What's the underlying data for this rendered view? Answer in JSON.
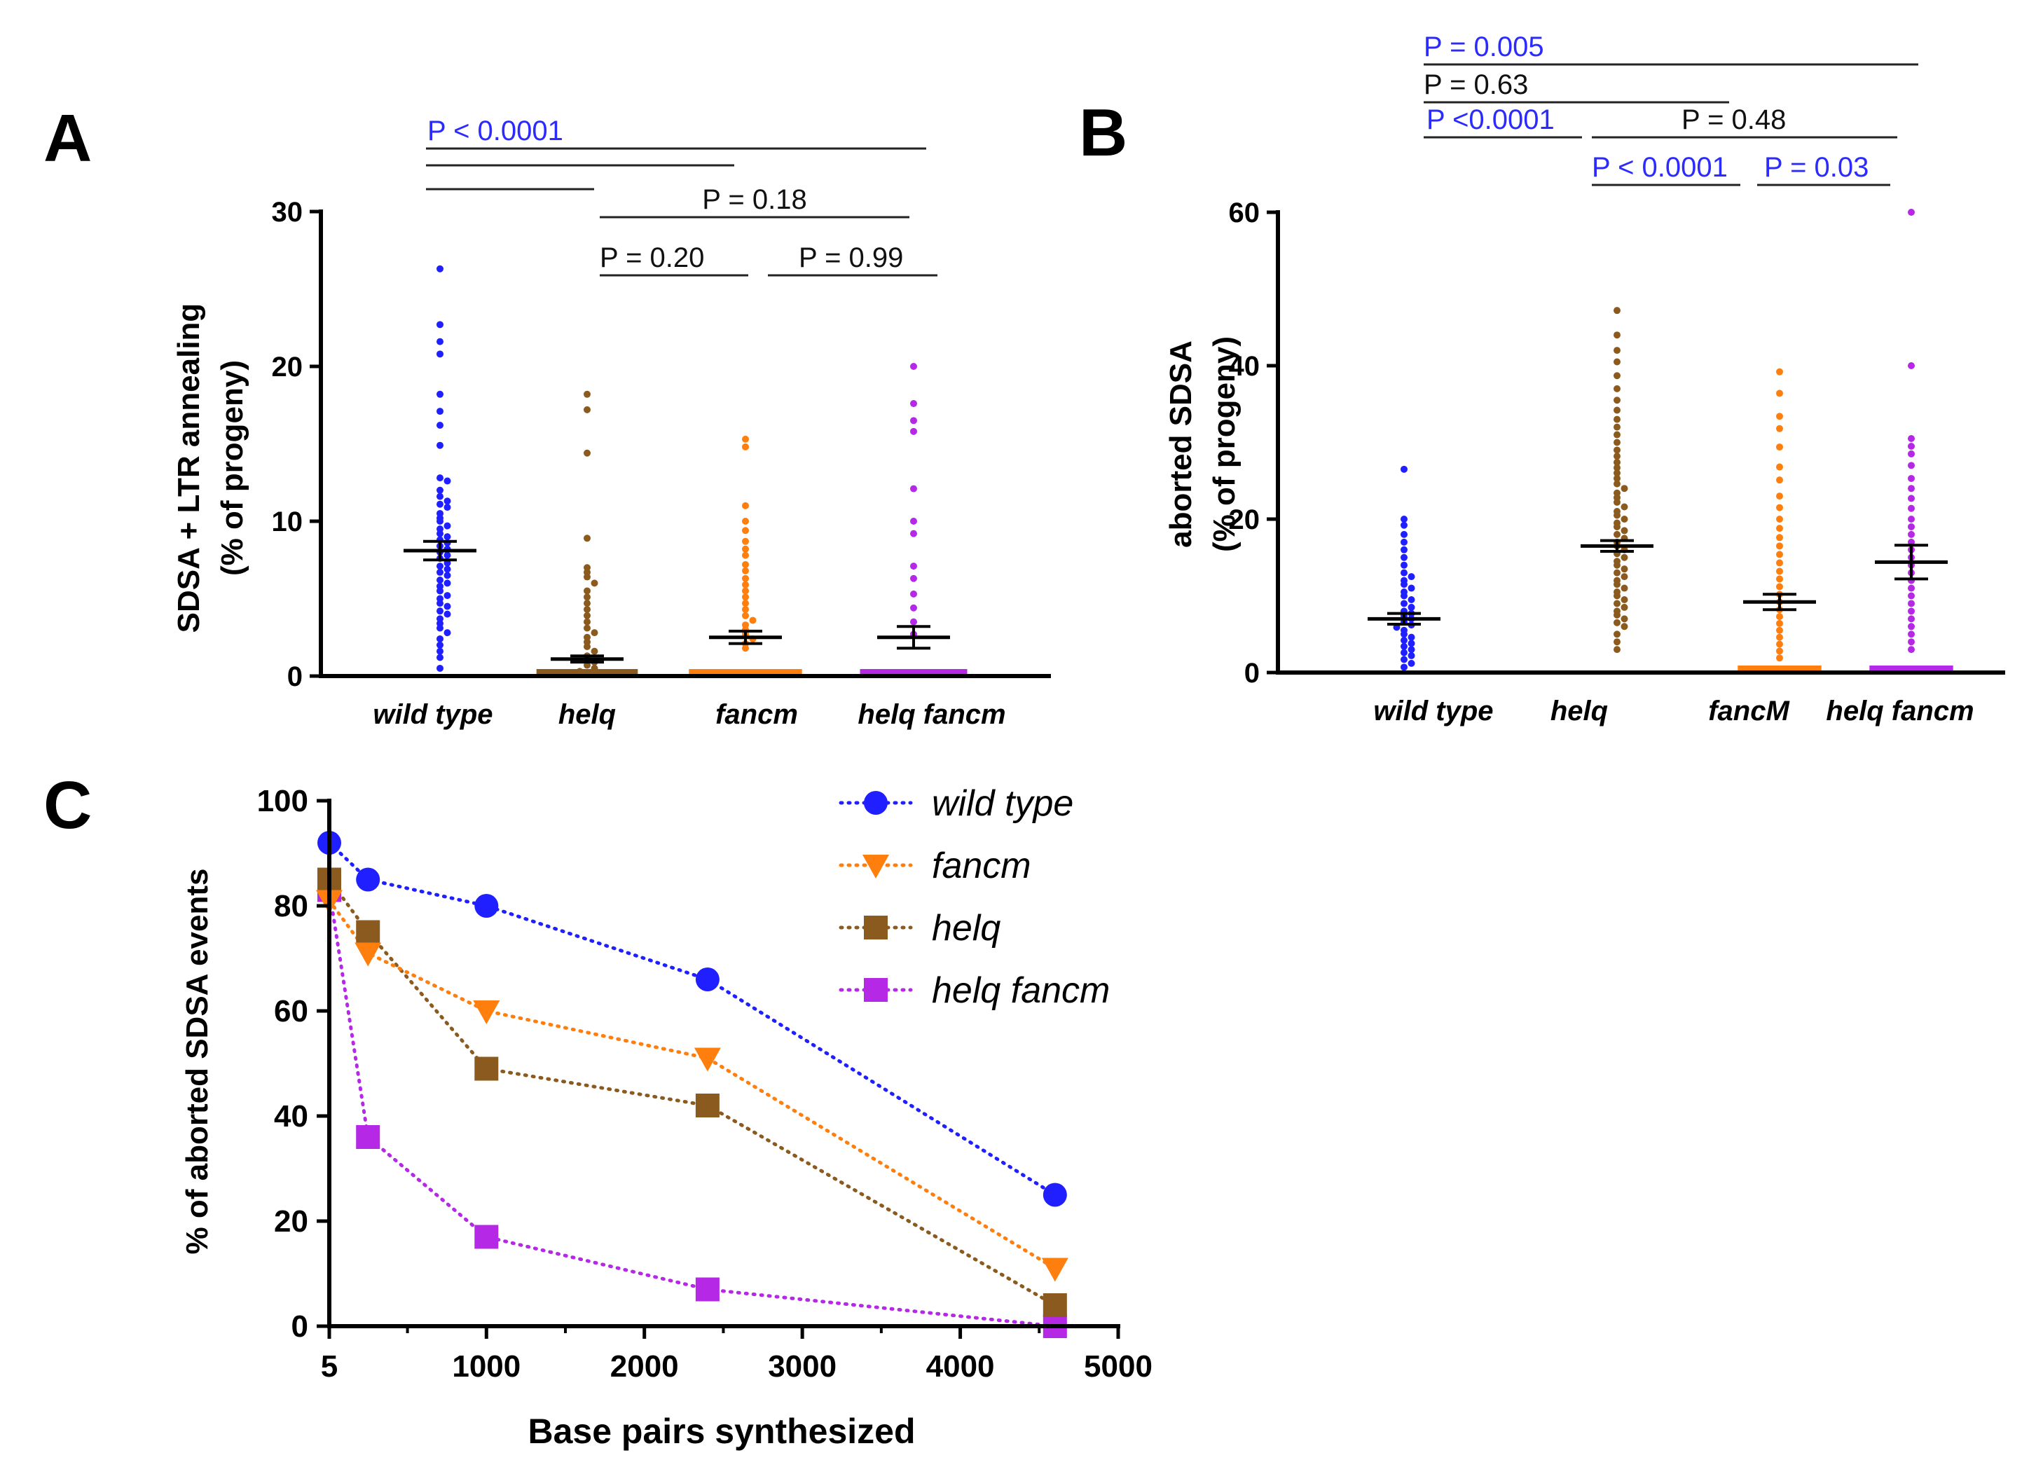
{
  "panels": {
    "A": {
      "letter": "A"
    },
    "B": {
      "letter": "B"
    },
    "C": {
      "letter": "C"
    }
  },
  "colors": {
    "wild_type": "#1f1fff",
    "helq": "#8b5a1e",
    "fancm": "#ff7f0e",
    "helq_fancm": "#b428e6",
    "significant": "#2b2bff",
    "ns": "#111111"
  },
  "chart_data": [
    {
      "panel": "A",
      "type": "scatter",
      "ylabel": "SDSA + LTR annealing",
      "ylabel2": "(% of progeny)",
      "ylim": [
        0,
        30
      ],
      "yticks": [
        0,
        10,
        20,
        30
      ],
      "categories": [
        "wild type",
        "helq",
        "fancm",
        "helq fancm"
      ],
      "series": [
        {
          "name": "wild type",
          "mean": 8.1,
          "sem": 0.6,
          "values": [
            26.3,
            22.7,
            21.6,
            20.8,
            18.2,
            17.1,
            16.2,
            14.9,
            12.8,
            12.6,
            12.0,
            11.6,
            11.3,
            11.1,
            10.9,
            10.5,
            10.2,
            10.0,
            9.7,
            9.5,
            9.2,
            9.0,
            8.8,
            8.6,
            8.4,
            8.2,
            8.0,
            7.8,
            7.6,
            7.3,
            7.1,
            6.9,
            6.7,
            6.5,
            6.2,
            6.0,
            5.8,
            5.5,
            5.2,
            5.0,
            4.7,
            4.5,
            4.2,
            4.0,
            3.7,
            3.4,
            3.1,
            2.8,
            2.4,
            2.0,
            1.6,
            1.2,
            0.5
          ]
        },
        {
          "name": "helq",
          "mean": 1.1,
          "sem": 0.2,
          "values": [
            18.2,
            17.2,
            14.4,
            8.9,
            7.0,
            6.7,
            6.4,
            6.0,
            5.5,
            5.1,
            4.7,
            4.3,
            3.9,
            3.5,
            3.1,
            2.8,
            2.5,
            2.2,
            1.9,
            1.6,
            1.3,
            1.1,
            0.9,
            0.7,
            0.5,
            0.3
          ]
        },
        {
          "name": "fancm",
          "mean": 2.5,
          "sem": 0.4,
          "values": [
            15.3,
            14.8,
            11.0,
            10.0,
            9.4,
            8.7,
            8.2,
            7.8,
            7.2,
            6.8,
            6.3,
            5.9,
            5.5,
            5.1,
            4.7,
            4.3,
            3.9,
            3.6,
            3.3,
            3.0,
            2.7,
            2.4,
            2.1,
            1.8
          ]
        },
        {
          "name": "helq fancm",
          "mean": 2.5,
          "sem": 0.7,
          "values": [
            20.0,
            17.6,
            16.5,
            15.8,
            12.1,
            10.0,
            9.2,
            7.1,
            6.3,
            5.3,
            4.4,
            3.5,
            2.7
          ]
        }
      ],
      "zero_counts": [
        0,
        34,
        38,
        36
      ]
    },
    {
      "panel": "B",
      "type": "scatter",
      "ylabel": "aborted SDSA",
      "ylabel2": "(% of progeny)",
      "ylim": [
        0,
        60
      ],
      "yticks": [
        0,
        20,
        40,
        60
      ],
      "categories": [
        "wild type",
        "helq",
        "fancM",
        "helq fancm"
      ],
      "series": [
        {
          "name": "wild type",
          "mean": 7.0,
          "sem": 0.7,
          "values": [
            26.5,
            20.0,
            19.2,
            18.0,
            17.0,
            16.0,
            15.0,
            14.0,
            13.0,
            12.5,
            12.0,
            11.5,
            11.0,
            10.5,
            10.0,
            9.5,
            9.0,
            8.5,
            8.0,
            7.7,
            7.4,
            7.0,
            6.6,
            6.2,
            5.9,
            5.5,
            5.0,
            4.6,
            4.2,
            3.8,
            3.4,
            3.0,
            2.6,
            2.2,
            1.7,
            1.2,
            0.7
          ]
        },
        {
          "name": "helq",
          "mean": 16.5,
          "sem": 0.7,
          "values": [
            47.2,
            44.0,
            42.0,
            40.5,
            38.7,
            37.0,
            35.5,
            34.2,
            33.0,
            32.0,
            31.0,
            30.0,
            29.0,
            28.2,
            27.4,
            26.7,
            26.0,
            25.3,
            24.6,
            24.0,
            23.4,
            22.8,
            22.2,
            21.6,
            21.0,
            20.5,
            20.0,
            19.5,
            19.0,
            18.5,
            18.0,
            17.5,
            17.0,
            16.5,
            16.0,
            15.5,
            15.0,
            14.5,
            14.0,
            13.5,
            13.0,
            12.5,
            12.0,
            11.5,
            11.0,
            10.5,
            10.0,
            9.5,
            9.0,
            8.5,
            8.0,
            7.5,
            7.0,
            6.5,
            6.0,
            5.0,
            4.0,
            3.0
          ]
        },
        {
          "name": "fancM",
          "mean": 9.2,
          "sem": 1.0,
          "values": [
            39.2,
            36.4,
            33.4,
            31.8,
            29.4,
            26.8,
            25.1,
            23.0,
            21.5,
            20.0,
            18.8,
            17.6,
            16.5,
            15.4,
            14.3,
            13.2,
            12.2,
            11.2,
            10.2,
            9.2,
            8.2,
            7.3,
            6.4,
            5.5,
            4.6,
            3.7,
            2.8,
            1.9
          ]
        },
        {
          "name": "helq fancm",
          "mean": 14.4,
          "sem": 2.2,
          "values": [
            60.0,
            40.0,
            30.5,
            29.5,
            28.5,
            27.0,
            25.3,
            24.0,
            22.7,
            21.4,
            20.0,
            19.0,
            18.0,
            17.0,
            16.0,
            15.0,
            14.0,
            13.0,
            12.0,
            11.0,
            10.0,
            9.0,
            8.0,
            7.0,
            6.0,
            5.0,
            4.0,
            3.0
          ]
        }
      ],
      "zero_counts": [
        0,
        0,
        28,
        28
      ]
    },
    {
      "panel": "C",
      "type": "line",
      "ylabel": "% of aborted SDSA events",
      "xlabel": "Base pairs synthesized",
      "xlim": [
        5,
        5000
      ],
      "ylim": [
        0,
        100
      ],
      "xticks": [
        5,
        1000,
        2000,
        3000,
        4000,
        5000
      ],
      "yticks": [
        0,
        20,
        40,
        60,
        80,
        100
      ],
      "x": [
        5,
        250,
        1000,
        2400,
        4600
      ],
      "series": [
        {
          "name": "wild type",
          "marker": "circle",
          "values": [
            92,
            85,
            80,
            66,
            25
          ]
        },
        {
          "name": "fancm",
          "marker": "triangle-down",
          "values": [
            81,
            71,
            60,
            51,
            11
          ]
        },
        {
          "name": "helq",
          "marker": "square",
          "values": [
            85,
            75,
            49,
            42,
            4
          ]
        },
        {
          "name": "helq fancm",
          "marker": "square",
          "values": [
            83,
            36,
            17,
            7,
            0
          ]
        }
      ]
    }
  ],
  "comparisons": {
    "A": [
      {
        "label": "P < 0.0001",
        "significant": true,
        "from": 0,
        "to": 3
      },
      {
        "label": "",
        "significant": false,
        "from": 0,
        "to": 2
      },
      {
        "label": "",
        "significant": false,
        "from": 0,
        "to": 1
      },
      {
        "label": "P = 0.18",
        "significant": false,
        "from": 1,
        "to": 3
      },
      {
        "label": "P = 0.20",
        "significant": false,
        "from": 1,
        "to": 2
      },
      {
        "label": "P = 0.99",
        "significant": false,
        "from": 2,
        "to": 3
      }
    ],
    "B": [
      {
        "label": "P = 0.005",
        "significant": true,
        "from": 0,
        "to": 3
      },
      {
        "label": "P = 0.63",
        "significant": false,
        "from": 0,
        "to": 2
      },
      {
        "label": "P <0.0001",
        "significant": true,
        "from": 0,
        "to": 1
      },
      {
        "label": "P = 0.48",
        "significant": false,
        "from": 1,
        "to": 3
      },
      {
        "label": "P < 0.0001",
        "significant": true,
        "from": 1,
        "to": 2
      },
      {
        "label": "P = 0.03",
        "significant": true,
        "from": 2,
        "to": 3
      }
    ]
  }
}
